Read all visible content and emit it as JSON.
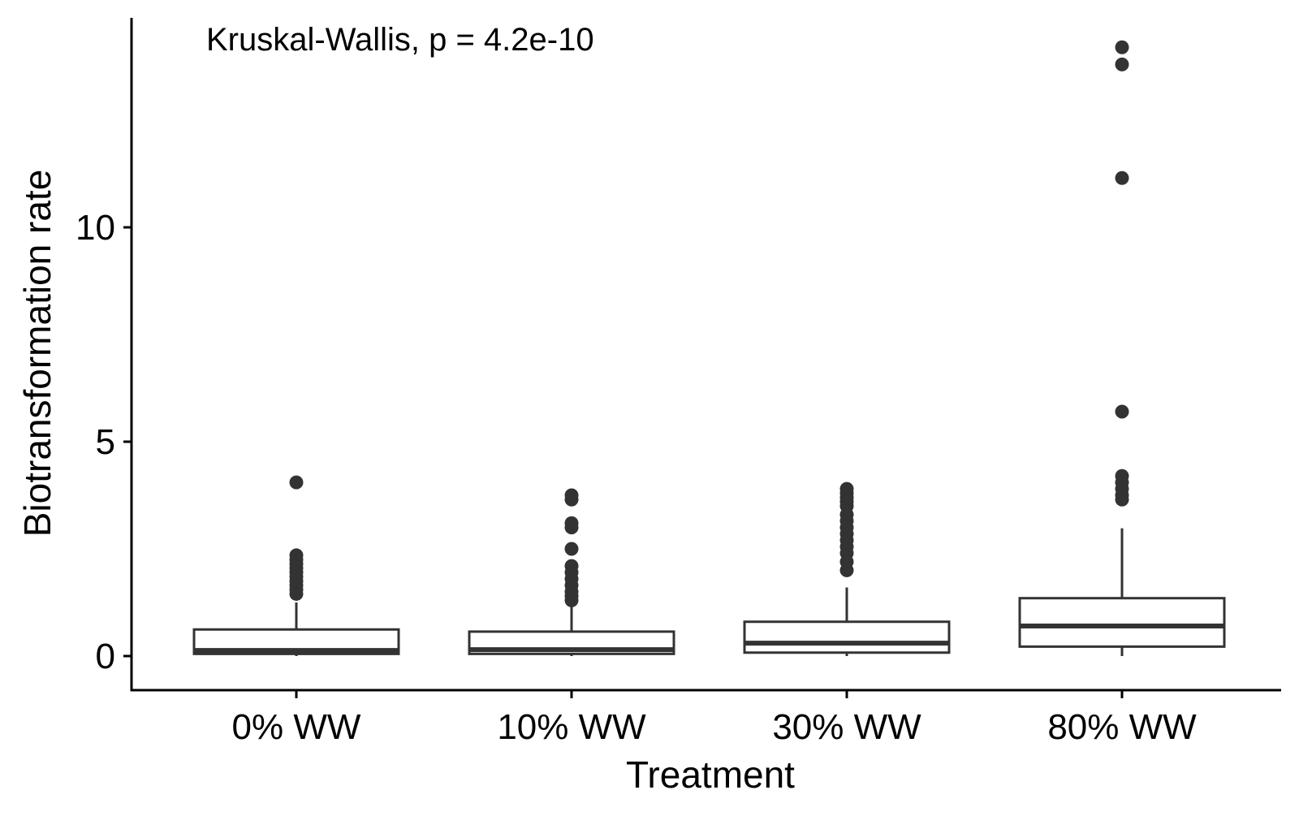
{
  "chart_data": {
    "type": "box",
    "annotation": "Kruskal-Wallis, p = 4.2e-10",
    "xlabel": "Treatment",
    "ylabel": "Biotransformation rate",
    "categories": [
      "0% WW",
      "10% WW",
      "30% WW",
      "80% WW"
    ],
    "yticks": [
      0,
      5,
      10
    ],
    "ytick_labels": [
      "0",
      "5",
      "10"
    ],
    "ylim": [
      -0.8,
      14.8
    ],
    "grid": false,
    "legend": "none",
    "colors": {
      "box_stroke": "#333333",
      "point_fill": "#333333",
      "axis": "#000000",
      "box_fill": "#ffffff"
    },
    "boxes": [
      {
        "category": "0% WW",
        "min": 0.0,
        "q1": 0.05,
        "median": 0.13,
        "q3": 0.62,
        "max": 1.25,
        "outliers": [
          4.05,
          2.35,
          2.25,
          2.15,
          2.05,
          1.95,
          1.85,
          1.75,
          1.65,
          1.55,
          1.45
        ]
      },
      {
        "category": "10% WW",
        "min": 0.0,
        "q1": 0.05,
        "median": 0.15,
        "q3": 0.57,
        "max": 1.2,
        "outliers": [
          3.75,
          3.65,
          3.1,
          3.0,
          2.5,
          2.1,
          1.95,
          1.8,
          1.65,
          1.5,
          1.4,
          1.3
        ]
      },
      {
        "category": "30% WW",
        "min": 0.0,
        "q1": 0.08,
        "median": 0.3,
        "q3": 0.8,
        "max": 1.6,
        "outliers": [
          3.9,
          3.8,
          3.7,
          3.6,
          3.5,
          3.3,
          3.15,
          3.0,
          2.85,
          2.7,
          2.55,
          2.4,
          2.2,
          2.0
        ]
      },
      {
        "category": "80% WW",
        "min": 0.0,
        "q1": 0.22,
        "median": 0.7,
        "q3": 1.35,
        "max": 2.98,
        "outliers": [
          14.2,
          13.8,
          11.15,
          5.7,
          4.2,
          4.05,
          3.9,
          3.75,
          3.65
        ]
      }
    ]
  }
}
